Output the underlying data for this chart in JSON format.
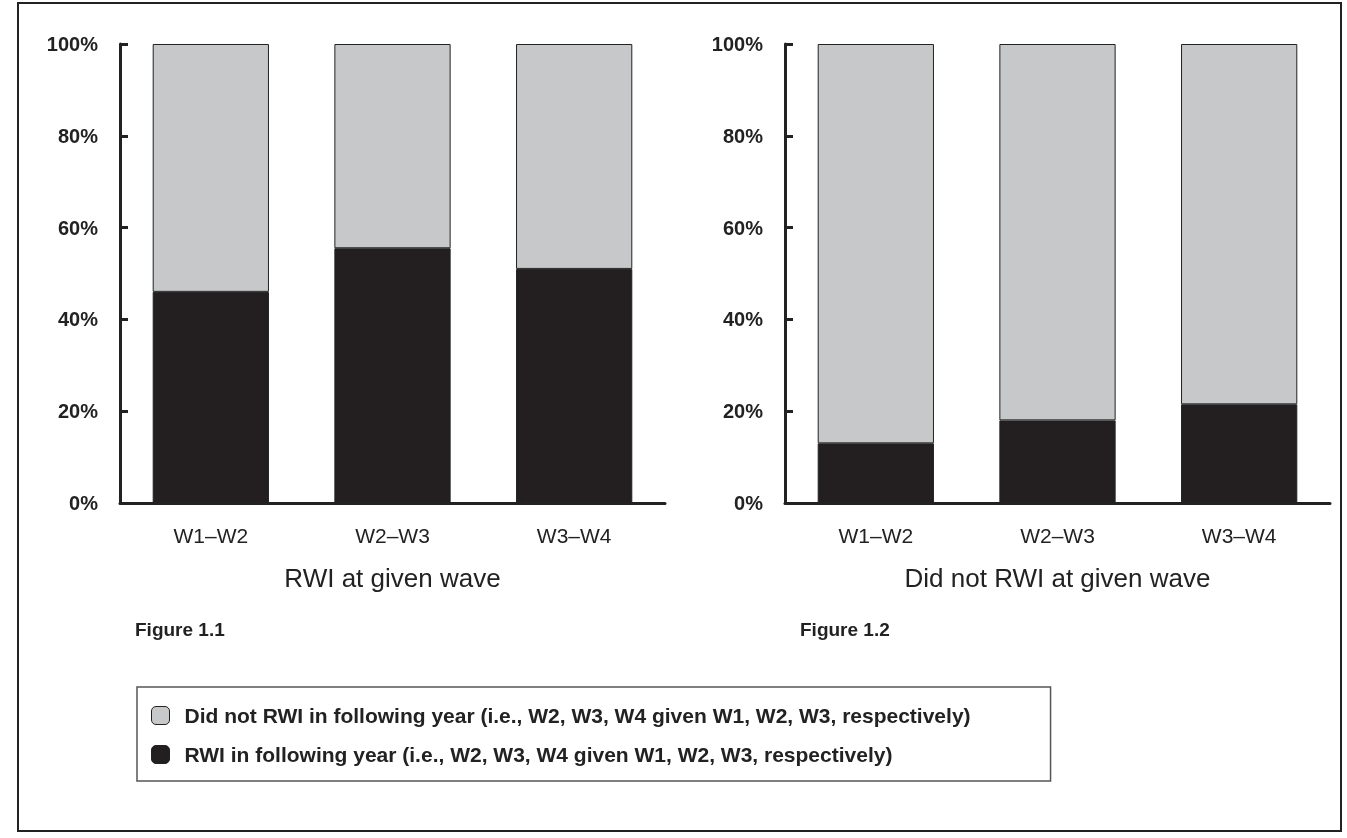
{
  "chart_data": [
    {
      "type": "bar",
      "stacked": true,
      "xlabel": "RWI at given wave",
      "categories": [
        "W1–W2",
        "W2–W3",
        "W3–W4"
      ],
      "series": [
        {
          "name": "RWI in following year (i.e., W2, W3, W4 given W1, W2, W3, respectively)",
          "color": "#231f20",
          "values": [
            46,
            55.5,
            51
          ]
        },
        {
          "name": "Did not RWI in following year (i.e., W2, W3, W4 given W1, W2, W3, respectively)",
          "color": "#c7c8ca",
          "values": [
            54,
            44.5,
            49
          ]
        }
      ],
      "ylim": [
        0,
        100
      ],
      "yticks": [
        {
          "value": 0,
          "label": "0%"
        },
        {
          "value": 20,
          "label": "20%"
        },
        {
          "value": 40,
          "label": "40%"
        },
        {
          "value": 60,
          "label": "60%"
        },
        {
          "value": 80,
          "label": "80%"
        },
        {
          "value": 100,
          "label": "100%"
        }
      ],
      "grid": false,
      "legend": "bottom",
      "annotations": [
        "Figure 1.1"
      ]
    },
    {
      "type": "bar",
      "stacked": true,
      "xlabel": "Did not RWI at given wave",
      "categories": [
        "W1–W2",
        "W2–W3",
        "W3–W4"
      ],
      "series": [
        {
          "color": "#231f20",
          "values": [
            13,
            18,
            21.5
          ]
        },
        {
          "color": "#c7c8ca",
          "values": [
            87,
            82,
            78.5
          ]
        }
      ],
      "ylim": [
        0,
        100
      ],
      "yticks": [
        {
          "value": 0,
          "label": "0%"
        },
        {
          "value": 20,
          "label": "20%"
        },
        {
          "value": 40,
          "label": "40%"
        },
        {
          "value": 60,
          "label": "60%"
        },
        {
          "value": 80,
          "label": "80%"
        },
        {
          "value": 100,
          "label": "100%"
        }
      ],
      "grid": false,
      "legend": false,
      "annotations": [
        "Figure 1.2"
      ]
    }
  ]
}
